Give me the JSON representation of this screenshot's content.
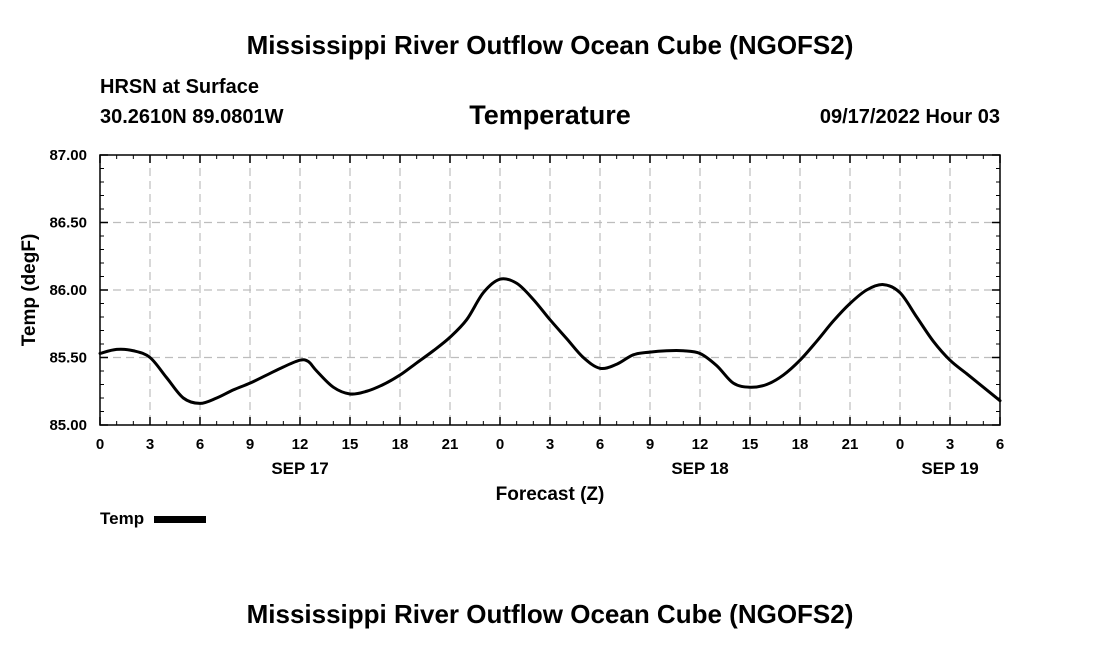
{
  "page": {
    "title_top": "Mississippi River Outflow Ocean Cube (NGOFS2)",
    "title_bottom": "Mississippi River Outflow Ocean Cube (NGOFS2)",
    "station": "HRSN at Surface",
    "coords": "30.2610N  89.0801W",
    "datetime": "09/17/2022 Hour 03"
  },
  "chart_data": {
    "type": "line",
    "title": "Temperature",
    "xlabel": "Forecast (Z)",
    "ylabel": "Temp (degF)",
    "xlim": [
      0,
      54
    ],
    "ylim": [
      85.0,
      87.0
    ],
    "grid": true,
    "yticks": [
      "85.00",
      "85.50",
      "86.00",
      "86.50",
      "87.00"
    ],
    "yticks_values": [
      85.0,
      85.5,
      86.0,
      86.5,
      87.0
    ],
    "xticks": [
      {
        "h": 0,
        "label": "0"
      },
      {
        "h": 3,
        "label": "3"
      },
      {
        "h": 6,
        "label": "6"
      },
      {
        "h": 9,
        "label": "9"
      },
      {
        "h": 12,
        "label": "12"
      },
      {
        "h": 15,
        "label": "15"
      },
      {
        "h": 18,
        "label": "18"
      },
      {
        "h": 21,
        "label": "21"
      },
      {
        "h": 24,
        "label": "0"
      },
      {
        "h": 27,
        "label": "3"
      },
      {
        "h": 30,
        "label": "6"
      },
      {
        "h": 33,
        "label": "9"
      },
      {
        "h": 36,
        "label": "12"
      },
      {
        "h": 39,
        "label": "15"
      },
      {
        "h": 42,
        "label": "18"
      },
      {
        "h": 45,
        "label": "21"
      },
      {
        "h": 48,
        "label": "0"
      },
      {
        "h": 51,
        "label": "3"
      },
      {
        "h": 54,
        "label": "6"
      }
    ],
    "date_labels": [
      {
        "h": 12,
        "label": "SEP 17"
      },
      {
        "h": 36,
        "label": "SEP 18"
      },
      {
        "h": 51,
        "label": "SEP 19"
      }
    ],
    "legend": "Temp",
    "series": [
      {
        "name": "Temp",
        "color": "#000000",
        "x": [
          0,
          1,
          2,
          3,
          4,
          5,
          6,
          7,
          8,
          9,
          10,
          11,
          12,
          12.5,
          13,
          14,
          15,
          16,
          17,
          18,
          19,
          20,
          21,
          22,
          23,
          24,
          25,
          26,
          27,
          28,
          29,
          30,
          31,
          32,
          33,
          34,
          35,
          36,
          37,
          38,
          39,
          40,
          41,
          42,
          43,
          44,
          45,
          46,
          47,
          48,
          49,
          50,
          51,
          52,
          53,
          54
        ],
        "values": [
          85.53,
          85.56,
          85.55,
          85.5,
          85.35,
          85.2,
          85.16,
          85.2,
          85.26,
          85.31,
          85.37,
          85.43,
          85.48,
          85.47,
          85.4,
          85.28,
          85.23,
          85.25,
          85.3,
          85.37,
          85.46,
          85.55,
          85.65,
          85.78,
          85.98,
          86.08,
          86.05,
          85.93,
          85.78,
          85.64,
          85.5,
          85.42,
          85.45,
          85.52,
          85.54,
          85.55,
          85.55,
          85.53,
          85.44,
          85.31,
          85.28,
          85.3,
          85.37,
          85.48,
          85.62,
          85.77,
          85.9,
          86.0,
          86.04,
          85.98,
          85.8,
          85.62,
          85.48,
          85.38,
          85.28,
          85.18
        ]
      }
    ]
  }
}
